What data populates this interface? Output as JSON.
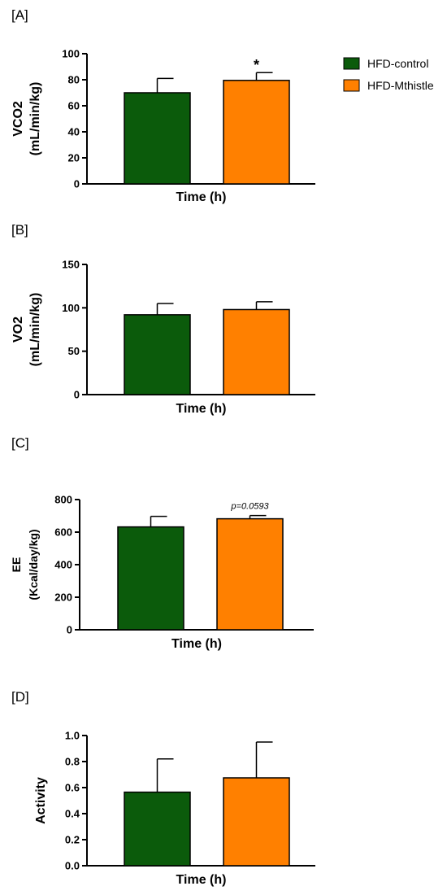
{
  "legend": {
    "entries": [
      {
        "name": "HFD-control",
        "color": "#0b5b0b"
      },
      {
        "name": "HFD-Mthistle",
        "color": "#ff8000"
      }
    ]
  },
  "chart_data": [
    {
      "panel": "[A]",
      "type": "bar",
      "ylabel_lines": [
        "VCO2",
        "(mL/min/kg)"
      ],
      "xlabel": "Time (h)",
      "ylim": [
        0,
        100
      ],
      "yticks": [
        0,
        20,
        40,
        60,
        80,
        100
      ],
      "series": [
        {
          "name": "HFD-control",
          "value": 70,
          "error": 11
        },
        {
          "name": "HFD-Mthistle",
          "value": 79.5,
          "error": 6
        }
      ],
      "annotation": "*"
    },
    {
      "panel": "[B]",
      "type": "bar",
      "ylabel_lines": [
        "VO2",
        "(mL/min/kg)"
      ],
      "xlabel": "Time (h)",
      "ylim": [
        0,
        150
      ],
      "yticks": [
        0,
        50,
        100,
        150
      ],
      "series": [
        {
          "name": "HFD-control",
          "value": 92,
          "error": 13
        },
        {
          "name": "HFD-Mthistle",
          "value": 98,
          "error": 9
        }
      ],
      "annotation": ""
    },
    {
      "panel": "[C]",
      "type": "bar",
      "ylabel_lines": [
        "EE",
        "(Kcal/day/kg)"
      ],
      "xlabel": "Time (h)",
      "ylim": [
        0,
        800
      ],
      "yticks": [
        0,
        200,
        400,
        600,
        800
      ],
      "series": [
        {
          "name": "HFD-control",
          "value": 632,
          "error": 65
        },
        {
          "name": "HFD-Mthistle",
          "value": 682,
          "error": 20
        }
      ],
      "annotation": "p=0.0593"
    },
    {
      "panel": "[D]",
      "type": "bar",
      "ylabel_lines": [
        "Activity"
      ],
      "xlabel": "Time (h)",
      "ylim": [
        0,
        1
      ],
      "yticks": [
        "0.0",
        "0.2",
        "0.4",
        "0.6",
        "0.8",
        "1.0"
      ],
      "series": [
        {
          "name": "HFD-control",
          "value": 0.565,
          "error": 0.255
        },
        {
          "name": "HFD-Mthistle",
          "value": 0.675,
          "error": 0.275
        }
      ],
      "annotation": ""
    }
  ]
}
